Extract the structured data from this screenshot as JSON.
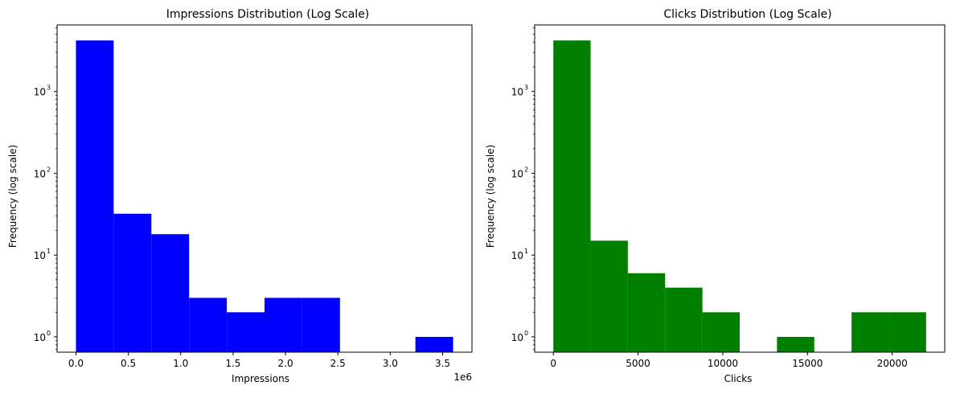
{
  "chart_data": [
    {
      "type": "bar",
      "title": "Impressions Distribution (Log Scale)",
      "xlabel": "Impressions",
      "ylabel": "Frequency (log scale)",
      "yscale": "log",
      "x_offset_label": "1e6",
      "xlim": [
        -180000,
        3780000
      ],
      "ylim": [
        0.65,
        6500
      ],
      "xticks": [
        0,
        500000,
        1000000,
        1500000,
        2000000,
        2500000,
        3000000,
        3500000
      ],
      "xtick_labels": [
        "0.0",
        "0.5",
        "1.0",
        "1.5",
        "2.0",
        "2.5",
        "3.0",
        "3.5"
      ],
      "yticks": [
        1,
        10,
        100,
        1000
      ],
      "ytick_labels": [
        "10",
        "10",
        "10",
        "10"
      ],
      "ytick_exponents": [
        "0",
        "1",
        "2",
        "3"
      ],
      "bin_edges": [
        0,
        360000,
        720000,
        1080000,
        1440000,
        1800000,
        2160000,
        2520000,
        2880000,
        3240000,
        3600000
      ],
      "counts": [
        4200,
        32,
        18,
        3,
        2,
        3,
        3,
        0,
        0,
        1
      ],
      "color": "#0000ff",
      "grid": false
    },
    {
      "type": "bar",
      "title": "Clicks Distribution (Log Scale)",
      "xlabel": "Clicks",
      "ylabel": "Frequency (log scale)",
      "yscale": "log",
      "x_offset_label": "",
      "xlim": [
        -1100,
        23100
      ],
      "ylim": [
        0.65,
        6500
      ],
      "xticks": [
        0,
        5000,
        10000,
        15000,
        20000
      ],
      "xtick_labels": [
        "0",
        "5000",
        "10000",
        "15000",
        "20000"
      ],
      "yticks": [
        1,
        10,
        100,
        1000
      ],
      "ytick_labels": [
        "10",
        "10",
        "10",
        "10"
      ],
      "ytick_exponents": [
        "0",
        "1",
        "2",
        "3"
      ],
      "bin_edges": [
        0,
        2200,
        4400,
        6600,
        8800,
        11000,
        13200,
        15400,
        17600,
        19800,
        22000
      ],
      "counts": [
        4200,
        15,
        6,
        4,
        2,
        0,
        1,
        0,
        2,
        2
      ],
      "color": "#008000",
      "grid": false
    }
  ]
}
